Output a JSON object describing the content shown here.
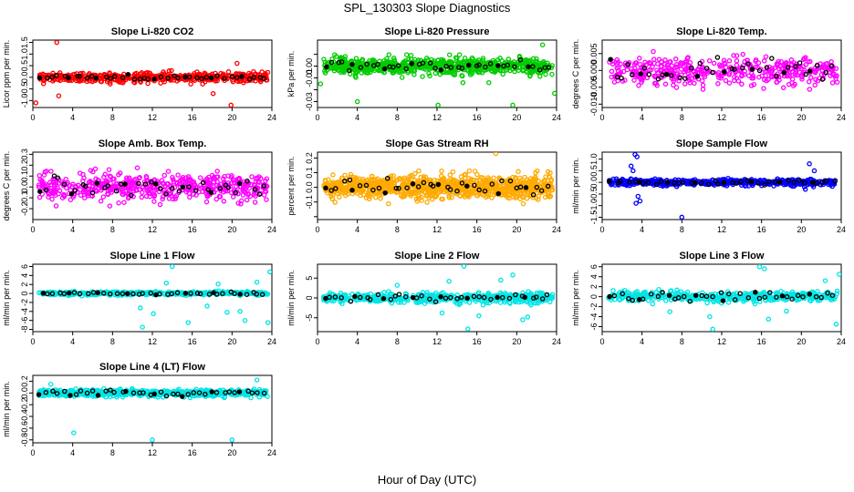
{
  "title": "SPL_130303  Slope Diagnostics",
  "x_axis_label": "Hour of Day (UTC)",
  "chart_data": [
    {
      "type": "scatter",
      "title": "Slope Li-820 CO2",
      "ylabel": "Licor ppm per min.",
      "color": "#ff0000",
      "xlim": [
        0,
        24
      ],
      "xticks": [
        0,
        4,
        8,
        12,
        16,
        20,
        24
      ],
      "ylim": [
        -1.3,
        1.6
      ],
      "yticks": [
        -1.0,
        -0.5,
        0.0,
        0.5,
        1.0,
        1.5
      ],
      "ytick_labels": [
        "-1.0",
        "-0.5",
        "0.0",
        "0.5",
        "1.0",
        "1.5"
      ],
      "spread": 0.18,
      "black_spread": 0.08,
      "n": 500,
      "n_black": 40,
      "outliers": [
        [
          2.4,
          1.5
        ],
        [
          20.5,
          0.6
        ],
        [
          19.9,
          -1.2
        ],
        [
          0.3,
          -1.1
        ],
        [
          2.6,
          -0.8
        ],
        [
          18.1,
          -0.7
        ]
      ]
    },
    {
      "type": "scatter",
      "title": "Slope Li-820 Pressure",
      "ylabel": "kPa per min.",
      "color": "#00cc00",
      "xlim": [
        0,
        24
      ],
      "xticks": [
        0,
        4,
        8,
        12,
        16,
        20,
        24
      ],
      "ylim": [
        -0.035,
        0.022
      ],
      "yticks": [
        -0.03,
        -0.02,
        -0.01,
        0.0,
        0.01
      ],
      "ytick_labels": [
        "-0.03",
        "",
        "-0.01",
        "",
        ""
      ],
      "extra_ticks": [
        [
          0.0,
          "0.00"
        ]
      ],
      "spread": 0.006,
      "black_spread": 0.004,
      "n": 700,
      "n_black": 40,
      "outliers": [
        [
          4.0,
          -0.03
        ],
        [
          12.1,
          -0.033
        ],
        [
          19.6,
          -0.033
        ],
        [
          0.3,
          -0.015
        ],
        [
          23.8,
          -0.023
        ],
        [
          22.6,
          0.018
        ],
        [
          14.6,
          -0.014
        ],
        [
          17.2,
          -0.014
        ]
      ]
    },
    {
      "type": "scatter",
      "title": "Slope Li-820 Temp.",
      "ylabel": "degrees C per min.",
      "color": "#ff00ff",
      "xlim": [
        0,
        24
      ],
      "xticks": [
        0,
        4,
        8,
        12,
        16,
        20,
        24
      ],
      "ylim": [
        -0.011,
        0.009
      ],
      "yticks": [
        -0.01,
        -0.005,
        0.0,
        0.005
      ],
      "ytick_labels": [
        "-0.010",
        "-0.005",
        "0.000",
        "0.005"
      ],
      "spread": 0.0035,
      "black_spread": 0.0025,
      "n": 420,
      "n_black": 40,
      "outliers": []
    },
    {
      "type": "scatter",
      "title": "Slope Amb. Box Temp.",
      "ylabel": "degrees C per min.",
      "color": "#ff00ff",
      "xlim": [
        0,
        24
      ],
      "xticks": [
        0,
        4,
        8,
        12,
        16,
        20,
        24
      ],
      "ylim": [
        -0.3,
        0.32
      ],
      "yticks": [
        -0.2,
        -0.1,
        0.0,
        0.1,
        0.2,
        0.3
      ],
      "ytick_labels": [
        "-0.2",
        "-0.1",
        "0.0",
        "0.1",
        "0.2",
        "0.3"
      ],
      "spread": 0.11,
      "black_spread": 0.08,
      "n": 500,
      "n_black": 40,
      "outliers": []
    },
    {
      "type": "scatter",
      "title": "Slope Gas Stream RH",
      "ylabel": "percent per min.",
      "color": "#ffaa00",
      "xlim": [
        0,
        24
      ],
      "xticks": [
        0,
        4,
        8,
        12,
        16,
        20,
        24
      ],
      "ylim": [
        -0.22,
        0.24
      ],
      "yticks": [
        -0.2,
        -0.1,
        0.0,
        0.1,
        0.2
      ],
      "ytick_labels": [
        "",
        "-0.1",
        "0.0",
        "0.1",
        "0.2"
      ],
      "spread": 0.07,
      "black_spread": 0.05,
      "n": 900,
      "n_black": 40,
      "outliers": [
        [
          17.9,
          0.23
        ]
      ]
    },
    {
      "type": "scatter",
      "title": "Slope Sample Flow",
      "ylabel": "ml/min per min.",
      "color": "#0000ff",
      "xlim": [
        0,
        24
      ],
      "xticks": [
        0,
        4,
        8,
        12,
        16,
        20,
        24
      ],
      "ylim": [
        -1.6,
        1.3
      ],
      "yticks": [
        -1.5,
        -1.0,
        -0.5,
        0.0,
        0.5,
        1.0
      ],
      "ytick_labels": [
        "-1.5",
        "-1.0",
        "-0.5",
        "0.0",
        "0.5",
        "1.0"
      ],
      "spread": 0.12,
      "black_spread": 0.07,
      "n": 520,
      "n_black": 40,
      "outliers": [
        [
          3.3,
          1.2
        ],
        [
          3.5,
          1.1
        ],
        [
          2.9,
          0.7
        ],
        [
          3.1,
          0.5
        ],
        [
          3.6,
          -0.6
        ],
        [
          3.8,
          -0.8
        ],
        [
          3.4,
          -0.9
        ],
        [
          8.0,
          -1.5
        ],
        [
          20.8,
          0.8
        ],
        [
          21.3,
          0.5
        ],
        [
          20.4,
          -0.3
        ]
      ]
    },
    {
      "type": "scatter",
      "title": "Slope Line 1 Flow",
      "ylabel": "ml/min per min.",
      "color": "#00e5e5",
      "xlim": [
        0,
        24
      ],
      "xticks": [
        0,
        4,
        8,
        12,
        16,
        20,
        24
      ],
      "ylim": [
        -8.5,
        6.5
      ],
      "yticks": [
        -8,
        -6,
        -4,
        -2,
        0,
        2,
        4,
        6
      ],
      "ytick_labels": [
        "-8",
        "-6",
        "-4",
        "-2",
        "0",
        "2",
        "4",
        "6"
      ],
      "spread": 0.35,
      "black_spread": 0.2,
      "n": 450,
      "n_black": 40,
      "outliers": [
        [
          14.0,
          6.0
        ],
        [
          11.0,
          -7.5
        ],
        [
          12.1,
          -4.5
        ],
        [
          15.6,
          -6.5
        ],
        [
          20.8,
          -4.0
        ],
        [
          21.3,
          -6.0
        ],
        [
          23.6,
          -6.5
        ],
        [
          23.8,
          4.8
        ],
        [
          22.5,
          2.5
        ],
        [
          18.6,
          2.1
        ],
        [
          13.4,
          2.3
        ],
        [
          10.8,
          -3.2
        ],
        [
          17.5,
          -2.8
        ],
        [
          19.5,
          -4.2
        ]
      ]
    },
    {
      "type": "scatter",
      "title": "Slope Line 2 Flow",
      "ylabel": "ml/min per min.",
      "color": "#00e5e5",
      "xlim": [
        0,
        24
      ],
      "xticks": [
        0,
        4,
        8,
        12,
        16,
        20,
        24
      ],
      "ylim": [
        -8.5,
        8.5
      ],
      "yticks": [
        -5,
        0,
        5
      ],
      "ytick_labels": [
        "-5",
        "0",
        "5"
      ],
      "spread": 1.1,
      "black_spread": 0.8,
      "n": 500,
      "n_black": 40,
      "outliers": [
        [
          14.7,
          8.0
        ],
        [
          15.1,
          -7.8
        ],
        [
          16.2,
          -4.5
        ],
        [
          20.6,
          -5.5
        ],
        [
          21.1,
          -4.8
        ],
        [
          18.4,
          4.5
        ],
        [
          19.6,
          5.8
        ],
        [
          13.2,
          4.2
        ],
        [
          12.5,
          -3.8
        ],
        [
          8.0,
          3.2
        ]
      ]
    },
    {
      "type": "scatter",
      "title": "Slope Line 3 Flow",
      "ylabel": "ml/min per min.",
      "color": "#00e5e5",
      "xlim": [
        0,
        24
      ],
      "xticks": [
        0,
        4,
        8,
        12,
        16,
        20,
        24
      ],
      "ylim": [
        -7,
        6.5
      ],
      "yticks": [
        -6,
        -4,
        -2,
        0,
        2,
        4,
        6
      ],
      "ytick_labels": [
        "-6",
        "-4",
        "-2",
        "0",
        "2",
        "4",
        "6"
      ],
      "spread": 0.9,
      "black_spread": 0.7,
      "n": 420,
      "n_black": 40,
      "outliers": [
        [
          15.8,
          6.0
        ],
        [
          16.3,
          5.6
        ],
        [
          11.1,
          -6.5
        ],
        [
          10.8,
          -4.0
        ],
        [
          16.7,
          -4.5
        ],
        [
          23.8,
          4.5
        ],
        [
          23.5,
          -5.5
        ],
        [
          22.4,
          3.2
        ],
        [
          6.8,
          -3.0
        ],
        [
          18.5,
          -2.9
        ]
      ]
    },
    {
      "type": "scatter",
      "title": "Slope Line 4 (LT) Flow",
      "ylabel": "ml/min per min.",
      "color": "#00e5e5",
      "xlim": [
        0,
        24
      ],
      "xticks": [
        0,
        4,
        8,
        12,
        16,
        20,
        24
      ],
      "ylim": [
        -0.85,
        0.3
      ],
      "yticks": [
        -0.8,
        -0.6,
        -0.4,
        -0.2,
        0.0,
        0.2
      ],
      "ytick_labels": [
        "-0.8",
        "-0.6",
        "-0.4",
        "-0.2",
        "0.0",
        "0.2"
      ],
      "spread": 0.05,
      "black_spread": 0.04,
      "n": 600,
      "n_black": 40,
      "outliers": [
        [
          4.1,
          -0.68
        ],
        [
          12.0,
          -0.8
        ],
        [
          20.0,
          -0.8
        ],
        [
          1.8,
          0.15
        ],
        [
          22.5,
          0.22
        ]
      ]
    }
  ]
}
